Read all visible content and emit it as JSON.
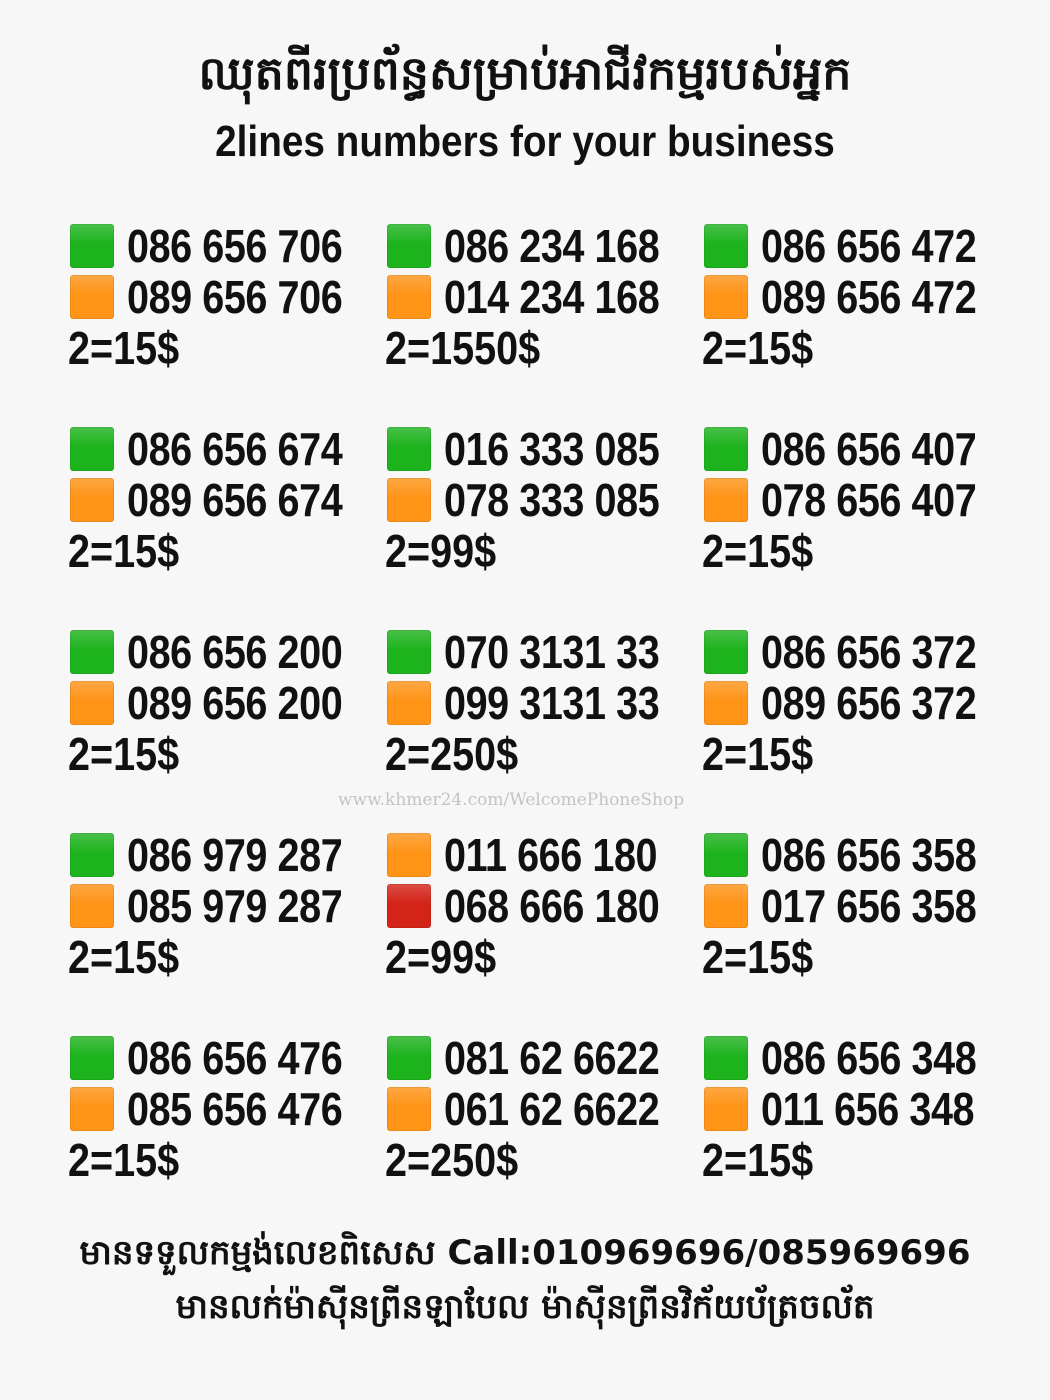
{
  "header": {
    "title_kh": "ឈុតពីរប្រព័ន្ធសម្រាប់អាជីវកម្មរបស់អ្នក",
    "title_en": "2lines numbers for your business"
  },
  "colors": {
    "green": "#1db31d",
    "orange": "#ff9417",
    "red": "#d42318"
  },
  "cards": [
    {
      "lines": [
        {
          "color": "green",
          "number": "086 656 706"
        },
        {
          "color": "orange",
          "number": "089 656 706"
        }
      ],
      "price": "2=15$"
    },
    {
      "lines": [
        {
          "color": "green",
          "number": "086 234 168"
        },
        {
          "color": "orange",
          "number": "014 234 168"
        }
      ],
      "price": "2=1550$"
    },
    {
      "lines": [
        {
          "color": "green",
          "number": "086 656 472"
        },
        {
          "color": "orange",
          "number": "089 656 472"
        }
      ],
      "price": "2=15$"
    },
    {
      "lines": [
        {
          "color": "green",
          "number": "086 656 674"
        },
        {
          "color": "orange",
          "number": "089 656 674"
        }
      ],
      "price": "2=15$"
    },
    {
      "lines": [
        {
          "color": "green",
          "number": "016 333 085"
        },
        {
          "color": "orange",
          "number": "078 333 085"
        }
      ],
      "price": "2=99$"
    },
    {
      "lines": [
        {
          "color": "green",
          "number": "086 656 407"
        },
        {
          "color": "orange",
          "number": "078 656 407"
        }
      ],
      "price": "2=15$"
    },
    {
      "lines": [
        {
          "color": "green",
          "number": "086 656 200"
        },
        {
          "color": "orange",
          "number": "089 656 200"
        }
      ],
      "price": "2=15$"
    },
    {
      "lines": [
        {
          "color": "green",
          "number": "070 3131 33"
        },
        {
          "color": "orange",
          "number": "099 3131 33"
        }
      ],
      "price": "2=250$"
    },
    {
      "lines": [
        {
          "color": "green",
          "number": "086 656 372"
        },
        {
          "color": "orange",
          "number": "089 656 372"
        }
      ],
      "price": "2=15$"
    },
    {
      "lines": [
        {
          "color": "green",
          "number": "086 979 287"
        },
        {
          "color": "orange",
          "number": "085 979 287"
        }
      ],
      "price": "2=15$"
    },
    {
      "lines": [
        {
          "color": "orange",
          "number": "011 666 180"
        },
        {
          "color": "red",
          "number": "068 666 180"
        }
      ],
      "price": "2=99$"
    },
    {
      "lines": [
        {
          "color": "green",
          "number": "086 656 358"
        },
        {
          "color": "orange",
          "number": "017 656 358"
        }
      ],
      "price": "2=15$"
    },
    {
      "lines": [
        {
          "color": "green",
          "number": "086 656 476"
        },
        {
          "color": "orange",
          "number": "085 656 476"
        }
      ],
      "price": "2=15$"
    },
    {
      "lines": [
        {
          "color": "green",
          "number": "081 62 6622"
        },
        {
          "color": "orange",
          "number": "061 62 6622"
        }
      ],
      "price": "2=250$"
    },
    {
      "lines": [
        {
          "color": "green",
          "number": "086 656 348"
        },
        {
          "color": "orange",
          "number": "011 656 348"
        }
      ],
      "price": "2=15$"
    }
  ],
  "watermark": "www.khmer24.com/WelcomePhoneShop",
  "footer": {
    "line1": "មានទទួលកម្មង់លេខពិសេស Call:010969696/085969696",
    "line2": "មានលក់ម៉ាស៊ីនព្រីនឡាបែល ម៉ាស៊ីនព្រីនវិក័យប័ត្រចល័ត"
  }
}
